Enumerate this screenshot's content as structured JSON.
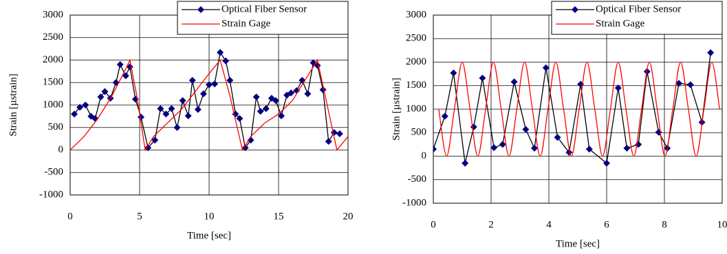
{
  "chart_data": [
    {
      "type": "line",
      "xlabel": "Time [sec]",
      "ylabel": "Strain [µstrain]",
      "xlim": [
        0,
        20
      ],
      "xticks": [
        0,
        5,
        10,
        15,
        20
      ],
      "ylim": [
        -1000,
        3000
      ],
      "yticks": [
        -1000,
        -500,
        0,
        500,
        1000,
        1500,
        2000,
        2500,
        3000
      ],
      "grid": true,
      "legend": "upper right",
      "series": [
        {
          "name": "Optical Fiber Sensor",
          "color": "#000080",
          "line_color": "#000000",
          "marker": "diamond",
          "x": [
            0.3,
            0.7,
            1.1,
            1.5,
            1.8,
            2.2,
            2.5,
            2.9,
            3.3,
            3.6,
            4.0,
            4.3,
            4.7,
            5.1,
            5.6,
            6.1,
            6.5,
            6.9,
            7.3,
            7.7,
            8.1,
            8.5,
            8.8,
            9.2,
            9.6,
            10.0,
            10.4,
            10.8,
            11.2,
            11.5,
            11.9,
            12.2,
            12.6,
            13.0,
            13.4,
            13.7,
            14.1,
            14.5,
            14.8,
            15.2,
            15.6,
            15.9,
            16.3,
            16.7,
            17.1,
            17.5,
            17.8,
            18.2,
            18.6,
            19.0,
            19.4
          ],
          "values": [
            800,
            950,
            1000,
            750,
            700,
            1180,
            1300,
            1150,
            1500,
            1900,
            1650,
            1850,
            1130,
            730,
            50,
            220,
            920,
            800,
            920,
            500,
            1100,
            760,
            1550,
            900,
            1250,
            1450,
            1470,
            2170,
            1980,
            1550,
            800,
            700,
            50,
            220,
            1180,
            860,
            920,
            1150,
            1100,
            760,
            1220,
            1270,
            1320,
            1550,
            1250,
            1940,
            1880,
            1340,
            190,
            390,
            360
          ]
        },
        {
          "name": "Strain Gage",
          "color": "#ff0000",
          "marker": "none",
          "x": [
            0,
            1,
            2,
            3,
            4,
            4.3,
            4.8,
            5.4,
            6,
            7,
            8,
            9,
            10,
            10.8,
            11.5,
            12.4,
            13,
            14,
            15,
            16,
            17,
            17.8,
            18.5,
            19.2,
            20
          ],
          "values": [
            0,
            300,
            700,
            1200,
            1800,
            2000,
            1200,
            0,
            300,
            600,
            900,
            1300,
            1700,
            2000,
            1200,
            0,
            300,
            600,
            800,
            1100,
            1600,
            2000,
            1000,
            0,
            300
          ]
        }
      ]
    },
    {
      "type": "line",
      "xlabel": "Time [sec]",
      "ylabel": "Strain [µstrain]",
      "xlim": [
        0,
        10
      ],
      "xticks": [
        0,
        2,
        4,
        6,
        8,
        10
      ],
      "ylim": [
        -1000,
        3000
      ],
      "yticks": [
        -1000,
        -500,
        0,
        500,
        1000,
        1500,
        2000,
        2500,
        3000
      ],
      "grid": true,
      "legend": "upper right",
      "series": [
        {
          "name": "Optical Fiber Sensor",
          "color": "#000080",
          "line_color": "#000000",
          "marker": "diamond",
          "x": [
            0,
            0.4,
            0.7,
            1.1,
            1.4,
            1.7,
            2.1,
            2.4,
            2.8,
            3.2,
            3.5,
            3.9,
            4.3,
            4.7,
            5.1,
            5.4,
            6.0,
            6.4,
            6.7,
            7.1,
            7.4,
            7.8,
            8.1,
            8.5,
            8.9,
            9.3,
            9.6
          ],
          "values": [
            150,
            850,
            1770,
            -150,
            620,
            1660,
            180,
            250,
            1580,
            570,
            170,
            1880,
            400,
            80,
            1530,
            150,
            -150,
            1450,
            170,
            250,
            1800,
            510,
            170,
            1550,
            1520,
            720,
            2200
          ]
        },
        {
          "name": "Strain Gage",
          "color": "#ff0000",
          "marker": "none",
          "smooth": true,
          "x": [
            0.19,
            0.46,
            0.73,
            1.0,
            1.27,
            1.54,
            1.81,
            2.08,
            2.35,
            2.62,
            2.89,
            3.16,
            3.43,
            3.7,
            3.97,
            4.24,
            4.51,
            4.78,
            5.05,
            5.32,
            5.59,
            5.86,
            6.13,
            6.4,
            6.67,
            6.94,
            7.21,
            7.48,
            7.75,
            8.02,
            8.29,
            8.56,
            8.83,
            9.1,
            9.37,
            9.64,
            9.91
          ],
          "values": [
            1000,
            0,
            1000,
            2000,
            1000,
            0,
            1000,
            2000,
            1000,
            0,
            1000,
            2000,
            1000,
            0,
            1000,
            2000,
            1000,
            0,
            1000,
            2000,
            1000,
            0,
            1000,
            2000,
            1000,
            0,
            1000,
            2000,
            1000,
            0,
            1000,
            2000,
            1000,
            0,
            1000,
            2000,
            1000
          ]
        }
      ]
    }
  ]
}
